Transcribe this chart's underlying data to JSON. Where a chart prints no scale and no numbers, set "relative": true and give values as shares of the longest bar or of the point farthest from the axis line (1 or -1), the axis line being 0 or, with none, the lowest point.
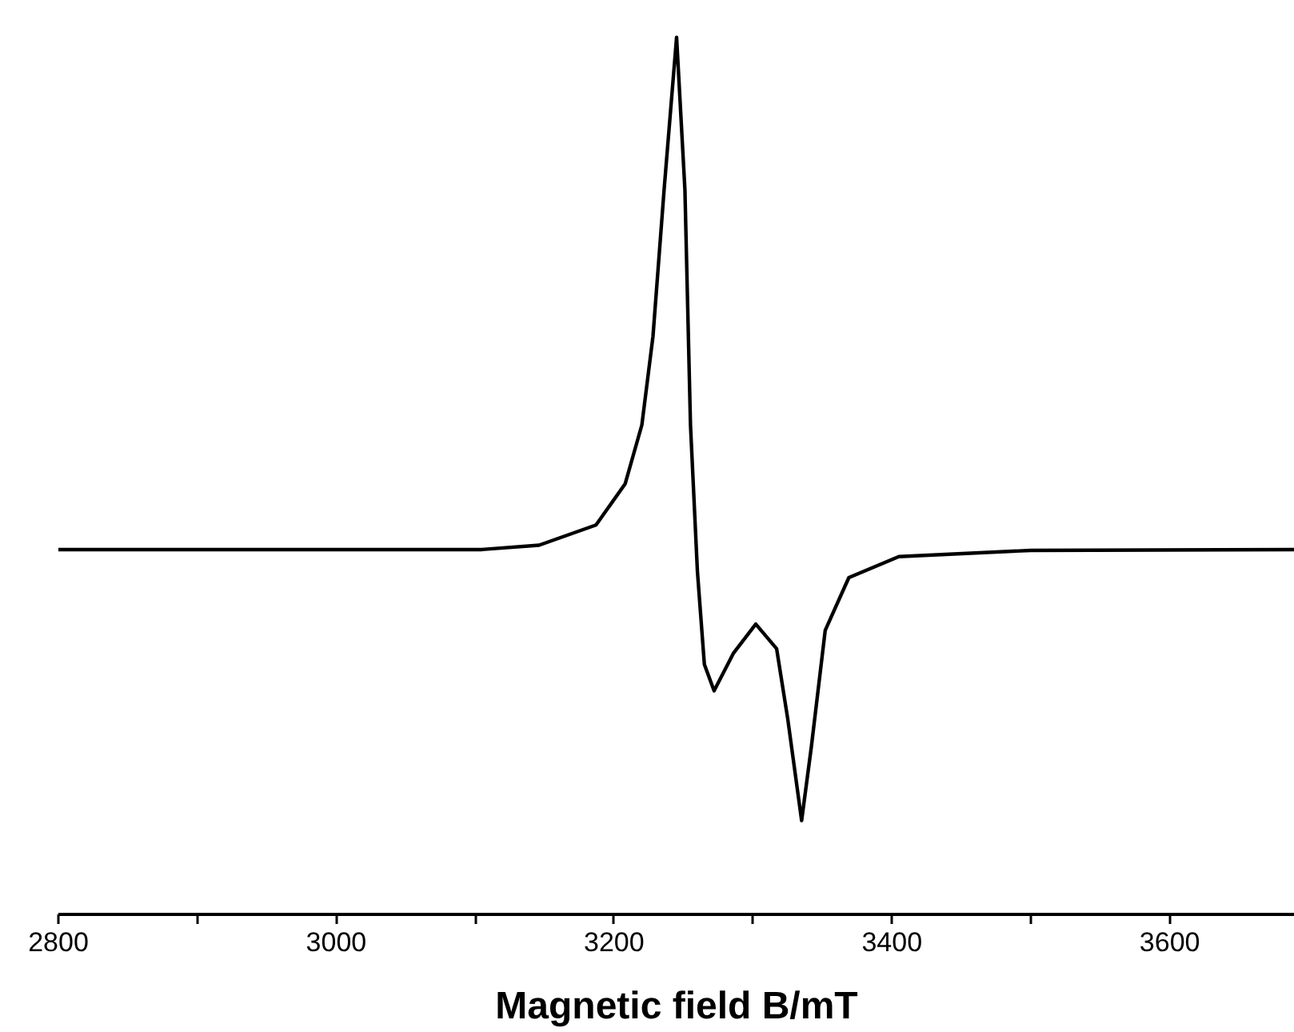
{
  "chart_data": {
    "type": "line",
    "relative": true,
    "xlabel": "Magnetic field B/mT",
    "x": [
      2800,
      3000,
      3105,
      3146,
      3187,
      3208,
      3220,
      3228,
      3236,
      3245,
      3251,
      3255,
      3260,
      3265,
      3272,
      3286,
      3302,
      3317,
      3325,
      3335,
      3342,
      3352,
      3369,
      3405,
      3500,
      3690
    ],
    "series": [
      {
        "color": "#000000",
        "values": [
          0.416,
          0.416,
          0.416,
          0.421,
          0.444,
          0.491,
          0.558,
          0.659,
          0.826,
          1.0,
          0.826,
          0.558,
          0.391,
          0.285,
          0.255,
          0.298,
          0.331,
          0.303,
          0.223,
          0.107,
          0.191,
          0.324,
          0.384,
          0.408,
          0.415,
          0.416
        ]
      }
    ],
    "xlim": [
      2800,
      3690
    ],
    "xticks": [
      2800,
      {
        "value": 2900,
        "label": null
      },
      3000,
      {
        "value": 3100,
        "label": null
      },
      3200,
      {
        "value": 3300,
        "label": null
      },
      3400,
      {
        "value": 3500,
        "label": null
      },
      3600
    ],
    "marker": "none",
    "line_style": "solid"
  }
}
